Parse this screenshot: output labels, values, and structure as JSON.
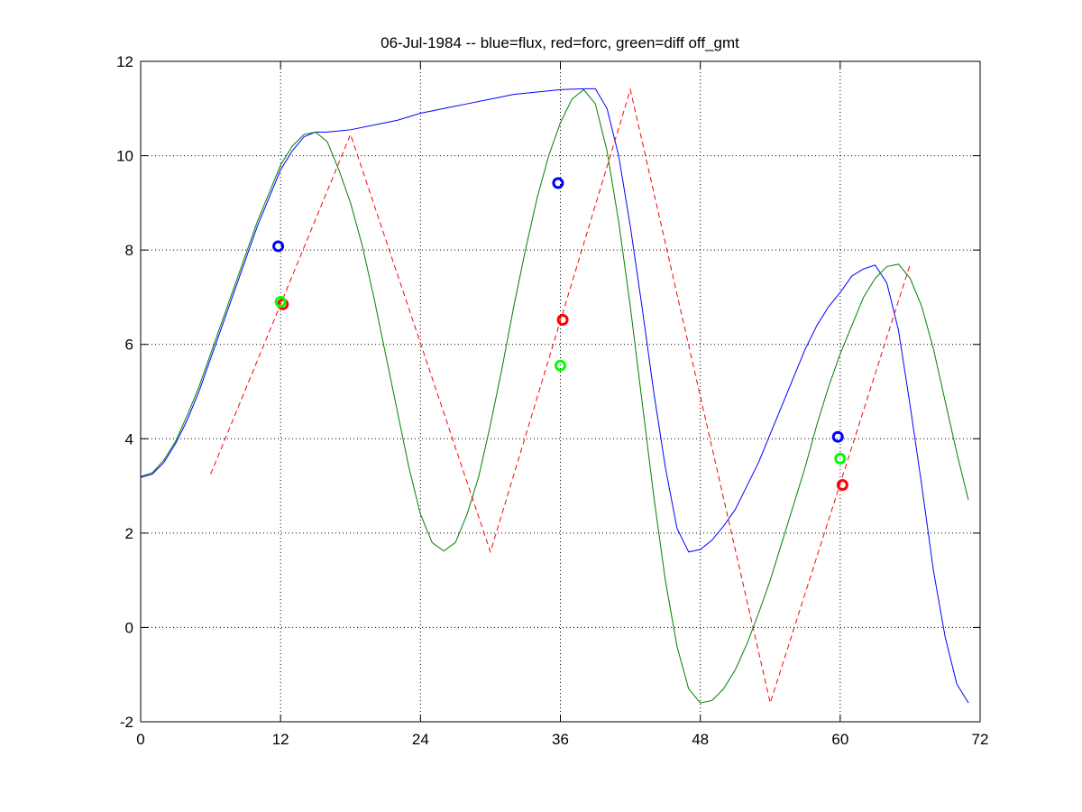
{
  "chart_data": {
    "type": "line",
    "title": "06-Jul-1984 -- blue=flux, red=forc, green=diff off_gmt",
    "xlim": [
      0,
      72
    ],
    "xticks": [
      0,
      12,
      24,
      36,
      48,
      60,
      72
    ],
    "ylim": [
      -2,
      12
    ],
    "yticks": [
      -2,
      0,
      2,
      4,
      6,
      8,
      10,
      12
    ],
    "grid": true,
    "series": [
      {
        "color": "#0000ff",
        "style": "solid",
        "x": [
          0,
          1,
          2,
          3,
          4,
          5,
          6,
          7,
          8,
          9,
          10,
          11,
          12,
          13,
          14,
          15,
          16,
          18,
          20,
          22,
          24,
          26,
          28,
          30,
          32,
          34,
          36,
          38,
          39,
          40,
          41,
          42,
          43,
          44,
          45,
          46,
          47,
          48,
          49,
          50,
          51,
          52,
          53,
          54,
          55,
          56,
          57,
          58,
          59,
          60,
          61,
          62,
          63,
          64,
          65,
          66,
          67,
          68,
          69,
          70,
          71
        ],
        "values": [
          3.18,
          3.25,
          3.5,
          3.9,
          4.4,
          5.0,
          5.7,
          6.4,
          7.1,
          7.8,
          8.5,
          9.1,
          9.7,
          10.1,
          10.4,
          10.5,
          10.5,
          10.55,
          10.65,
          10.75,
          10.9,
          11.0,
          11.1,
          11.2,
          11.3,
          11.35,
          11.4,
          11.42,
          11.42,
          11.0,
          10.0,
          8.5,
          6.8,
          5.0,
          3.4,
          2.1,
          1.6,
          1.65,
          1.85,
          2.15,
          2.5,
          3.0,
          3.5,
          4.1,
          4.7,
          5.3,
          5.9,
          6.4,
          6.8,
          7.1,
          7.45,
          7.6,
          7.68,
          7.3,
          6.3,
          4.7,
          3.0,
          1.2,
          -0.2,
          -1.2,
          -1.6
        ]
      },
      {
        "color": "#008000",
        "style": "solid",
        "x": [
          0,
          1,
          2,
          3,
          4,
          5,
          6,
          7,
          8,
          9,
          10,
          11,
          12,
          13,
          14,
          15,
          16,
          17,
          18,
          19,
          20,
          21,
          22,
          23,
          24,
          25,
          26,
          27,
          28,
          29,
          30,
          31,
          32,
          33,
          34,
          35,
          36,
          37,
          38,
          39,
          40,
          41,
          42,
          43,
          44,
          45,
          46,
          47,
          48,
          49,
          50,
          51,
          52,
          53,
          54,
          55,
          56,
          57,
          58,
          59,
          60,
          61,
          62,
          63,
          64,
          65,
          66,
          67,
          68,
          69,
          70,
          71
        ],
        "values": [
          3.2,
          3.28,
          3.55,
          3.95,
          4.5,
          5.1,
          5.8,
          6.5,
          7.2,
          7.9,
          8.6,
          9.2,
          9.8,
          10.2,
          10.45,
          10.5,
          10.3,
          9.7,
          9.0,
          8.1,
          7.0,
          5.8,
          4.6,
          3.4,
          2.4,
          1.8,
          1.62,
          1.8,
          2.4,
          3.2,
          4.3,
          5.5,
          6.8,
          8.0,
          9.1,
          10.0,
          10.7,
          11.2,
          11.4,
          11.1,
          10.1,
          8.6,
          6.8,
          4.8,
          2.8,
          1.0,
          -0.4,
          -1.3,
          -1.6,
          -1.55,
          -1.3,
          -0.9,
          -0.35,
          0.3,
          1.0,
          1.8,
          2.6,
          3.4,
          4.3,
          5.1,
          5.8,
          6.4,
          7.0,
          7.4,
          7.65,
          7.7,
          7.4,
          6.8,
          5.9,
          4.8,
          3.7,
          2.7
        ]
      },
      {
        "color": "#ff0000",
        "style": "dashed",
        "x": [
          6,
          18,
          30,
          42,
          54,
          66
        ],
        "values": [
          3.25,
          10.45,
          1.6,
          11.4,
          -1.6,
          7.7
        ]
      },
      {
        "color": "#0000ff",
        "style": "marker",
        "x": [
          11.8,
          35.8,
          59.8
        ],
        "values": [
          8.08,
          9.42,
          4.04
        ]
      },
      {
        "color": "#ff0000",
        "style": "marker",
        "x": [
          12.2,
          36.2,
          60.2
        ],
        "values": [
          6.85,
          6.52,
          3.02
        ]
      },
      {
        "color": "#00ff00",
        "style": "marker",
        "x": [
          12,
          36,
          60
        ],
        "values": [
          6.9,
          5.55,
          3.58
        ]
      }
    ]
  }
}
